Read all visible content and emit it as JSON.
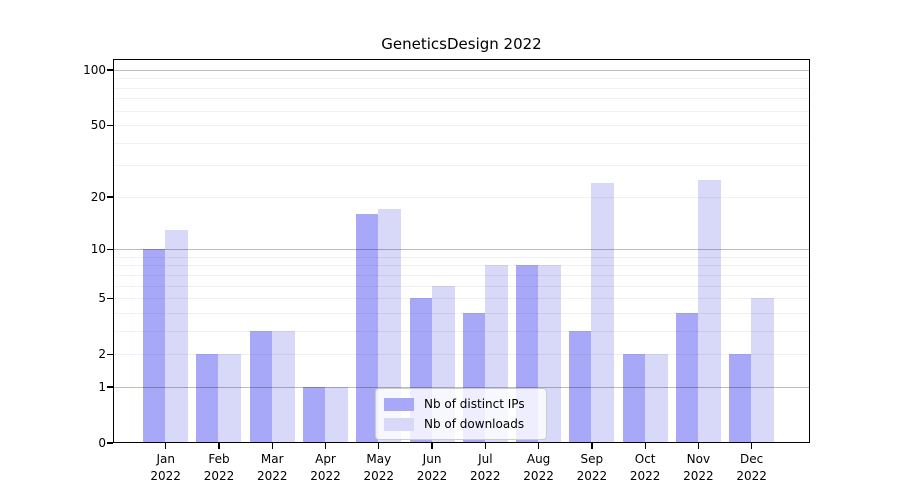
{
  "chart_data": {
    "type": "bar",
    "title": "GeneticsDesign 2022",
    "year": "2022",
    "categories": [
      "Jan",
      "Feb",
      "Mar",
      "Apr",
      "May",
      "Jun",
      "Jul",
      "Aug",
      "Sep",
      "Oct",
      "Nov",
      "Dec"
    ],
    "series": [
      {
        "name": "Nb of distinct IPs",
        "color": "#a8a8f8",
        "values": [
          10,
          2,
          3,
          1,
          16,
          5,
          4,
          8,
          3,
          2,
          4,
          2
        ]
      },
      {
        "name": "Nb of downloads",
        "color": "#d8d8f8",
        "values": [
          13,
          2,
          3,
          1,
          17,
          6,
          8,
          8,
          24,
          2,
          25,
          5
        ]
      }
    ],
    "y_axis": {
      "ticks": [
        0,
        1,
        2,
        5,
        10,
        20,
        50,
        100
      ],
      "scale": "log10(1+x)",
      "lim": [
        0,
        100
      ]
    },
    "grid": {
      "major": [
        1,
        10,
        100
      ],
      "minor": [
        2,
        3,
        4,
        5,
        6,
        7,
        8,
        9,
        20,
        30,
        40,
        50,
        60,
        70,
        80,
        90
      ]
    },
    "legend": {
      "position": "inside-bottom-center"
    }
  }
}
